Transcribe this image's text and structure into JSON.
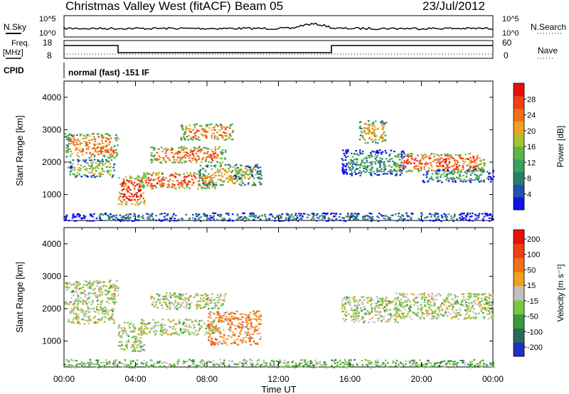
{
  "header": {
    "station": "Christmas Valley West (fitACF)",
    "beam": "Beam 05",
    "date": "23/Jul/2012"
  },
  "params": {
    "nsky_label": "N.Sky",
    "nsearch_label": "N.Search",
    "freq_label_1": "Freq.",
    "freq_label_2": "[MHz]",
    "nave_label": "Nave",
    "cpid_label": "CPID",
    "cpid_value": "normal (fast) -151 IF",
    "nsky_ticks": [
      "10^5",
      "10^0"
    ],
    "nsearch_ticks": [
      "10^5",
      "10^0"
    ],
    "freq_ticks": [
      "18",
      "8"
    ],
    "nave_ticks": [
      "60",
      "0"
    ]
  },
  "chart_data": [
    {
      "type": "heatmap",
      "name": "power",
      "xlabel": "",
      "ylabel": "Slant Range [km]",
      "ylim": [
        200,
        4500
      ],
      "xlim": [
        0,
        24
      ],
      "yticks": [
        "1000",
        "2000",
        "3000",
        "4000"
      ],
      "colorbar": {
        "label": "Power [dB]",
        "ticks": [
          "4",
          "8",
          "12",
          "16",
          "20",
          "24",
          "28"
        ],
        "colors": [
          "#1010e8",
          "#2050b0",
          "#2a7c6a",
          "#3aa060",
          "#58b848",
          "#a8c030",
          "#f0a020",
          "#f07018",
          "#f04010",
          "#e81008"
        ]
      },
      "patches": [
        {
          "t": [
            0.0,
            3.0
          ],
          "r": [
            2150,
            2900
          ],
          "level": 0.75
        },
        {
          "t": [
            0.2,
            2.8
          ],
          "r": [
            1550,
            2100
          ],
          "level": 0.5
        },
        {
          "t": [
            3.0,
            4.5
          ],
          "r": [
            700,
            1600
          ],
          "level": 0.92
        },
        {
          "t": [
            4.2,
            8.5
          ],
          "r": [
            1200,
            1700
          ],
          "level": 0.85
        },
        {
          "t": [
            4.8,
            9.0
          ],
          "r": [
            2000,
            2500
          ],
          "level": 0.8
        },
        {
          "t": [
            6.5,
            9.5
          ],
          "r": [
            2700,
            3200
          ],
          "level": 0.75
        },
        {
          "t": [
            7.5,
            11.0
          ],
          "r": [
            1300,
            1950
          ],
          "level": 0.6
        },
        {
          "t": [
            9.5,
            10.5
          ],
          "r": [
            1500,
            1900
          ],
          "level": 0.45
        },
        {
          "t": [
            15.5,
            19.0
          ],
          "r": [
            1600,
            2400
          ],
          "level": 0.3
        },
        {
          "t": [
            18.5,
            23.5
          ],
          "r": [
            1700,
            2300
          ],
          "level": 0.85
        },
        {
          "t": [
            20.0,
            24.0
          ],
          "r": [
            1400,
            1800
          ],
          "level": 0.35
        },
        {
          "t": [
            16.5,
            18.0
          ],
          "r": [
            2600,
            3300
          ],
          "level": 0.65
        },
        {
          "t": [
            0.0,
            24.0
          ],
          "r": [
            200,
            450
          ],
          "level": 0.2
        }
      ]
    },
    {
      "type": "heatmap",
      "name": "velocity",
      "xlabel": "Time UT",
      "ylabel": "Slant Range [km]",
      "ylim": [
        200,
        4500
      ],
      "xlim": [
        0,
        24
      ],
      "yticks": [
        "1000",
        "2000",
        "3000",
        "4000"
      ],
      "xticks": [
        "00:00",
        "04:00",
        "08:00",
        "12:00",
        "16:00",
        "20:00",
        "00:00"
      ],
      "colorbar": {
        "label": "Velocity [m s⁻¹]",
        "ticks": [
          "200",
          "100",
          "50",
          "15",
          "-15",
          "-50",
          "-100",
          "-200"
        ],
        "colors": [
          "#2030c0",
          "#2a6a5a",
          "#3a9a3a",
          "#7ac840",
          "#c0c0c0",
          "#f0a020",
          "#f07018",
          "#f04010",
          "#e81008"
        ]
      },
      "patches": [
        {
          "t": [
            0.0,
            3.0
          ],
          "r": [
            2150,
            2900
          ],
          "level": 0.45
        },
        {
          "t": [
            0.2,
            2.8
          ],
          "r": [
            1550,
            2100
          ],
          "level": 0.45
        },
        {
          "t": [
            3.0,
            4.5
          ],
          "r": [
            700,
            1600
          ],
          "level": 0.45
        },
        {
          "t": [
            4.2,
            8.5
          ],
          "r": [
            1200,
            1700
          ],
          "level": 0.45
        },
        {
          "t": [
            4.8,
            9.0
          ],
          "r": [
            2000,
            2500
          ],
          "level": 0.45
        },
        {
          "t": [
            8.0,
            11.0
          ],
          "r": [
            900,
            1950
          ],
          "level": 0.68
        },
        {
          "t": [
            15.5,
            19.0
          ],
          "r": [
            1600,
            2400
          ],
          "level": 0.45
        },
        {
          "t": [
            18.5,
            24.0
          ],
          "r": [
            1700,
            2500
          ],
          "level": 0.45
        },
        {
          "t": [
            0.0,
            24.0
          ],
          "r": [
            200,
            450
          ],
          "level": 0.35
        }
      ]
    }
  ]
}
